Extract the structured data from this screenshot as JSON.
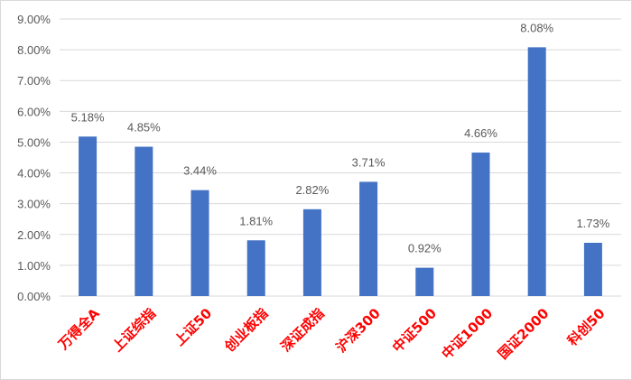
{
  "chart_data": {
    "type": "bar",
    "categories": [
      "万得全A",
      "上证综指",
      "上证50",
      "创业板指",
      "深证成指",
      "沪深300",
      "中证500",
      "中证1000",
      "国证2000",
      "科创50"
    ],
    "values": [
      5.18,
      4.85,
      3.44,
      1.81,
      2.82,
      3.71,
      0.92,
      4.66,
      8.08,
      1.73
    ],
    "data_labels": [
      "5.18%",
      "4.85%",
      "3.44%",
      "1.81%",
      "2.82%",
      "3.71%",
      "0.92%",
      "4.66%",
      "8.08%",
      "1.73%"
    ],
    "ylim": [
      0,
      9
    ],
    "y_ticks": [
      "0.00%",
      "1.00%",
      "2.00%",
      "3.00%",
      "4.00%",
      "5.00%",
      "6.00%",
      "7.00%",
      "8.00%",
      "9.00%"
    ],
    "grid": true,
    "legend": "none",
    "bar_color": "#4472C4",
    "category_label_color": "#FF0000",
    "title": "",
    "xlabel": "",
    "ylabel": ""
  }
}
